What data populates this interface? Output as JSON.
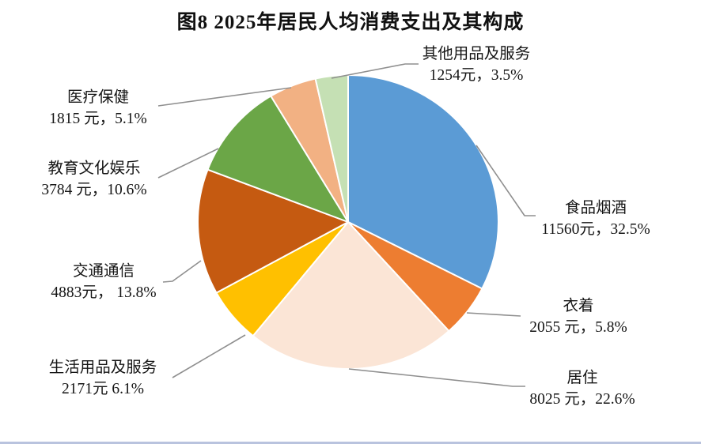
{
  "title": "图8  2025年居民人均消费支出及其构成",
  "chart_data": {
    "type": "pie",
    "title": "图8  2025年居民人均消费支出及其构成",
    "unit": "元",
    "start_angle_deg": 0,
    "direction": "clockwise",
    "legend": "none",
    "label_style": "two-line callout labels with gray leader lines",
    "slices": [
      {
        "label": "食品烟酒",
        "value": 11560,
        "pct": 32.5,
        "value_label": "11560元，32.5%",
        "color": "#5B9BD5"
      },
      {
        "label": "衣着",
        "value": 2055,
        "pct": 5.8,
        "value_label": "2055 元，5.8%",
        "color": "#ED7D31"
      },
      {
        "label": "居住",
        "value": 8025,
        "pct": 22.6,
        "value_label": "8025 元，22.6%",
        "color": "#FBE5D6"
      },
      {
        "label": "生活用品及服务",
        "value": 2171,
        "pct": 6.1,
        "value_label": "2171元 6.1%",
        "color": "#FFC000"
      },
      {
        "label": "交通通信",
        "value": 4883,
        "pct": 13.8,
        "value_label": "4883元， 13.8%",
        "color": "#C55A11"
      },
      {
        "label": "教育文化娱乐",
        "value": 3784,
        "pct": 10.6,
        "value_label": "3784 元，10.6%",
        "color": "#6BA647"
      },
      {
        "label": "医疗保健",
        "value": 1815,
        "pct": 5.1,
        "value_label": "1815 元，5.1%",
        "color": "#F2B183"
      },
      {
        "label": "其他用品及服务",
        "value": 1254,
        "pct": 3.5,
        "value_label": "1254元，3.5%",
        "color": "#C5E0B4"
      }
    ],
    "leader_line_color": "#8f8f8f",
    "slice_border_color": "#ffffff"
  }
}
